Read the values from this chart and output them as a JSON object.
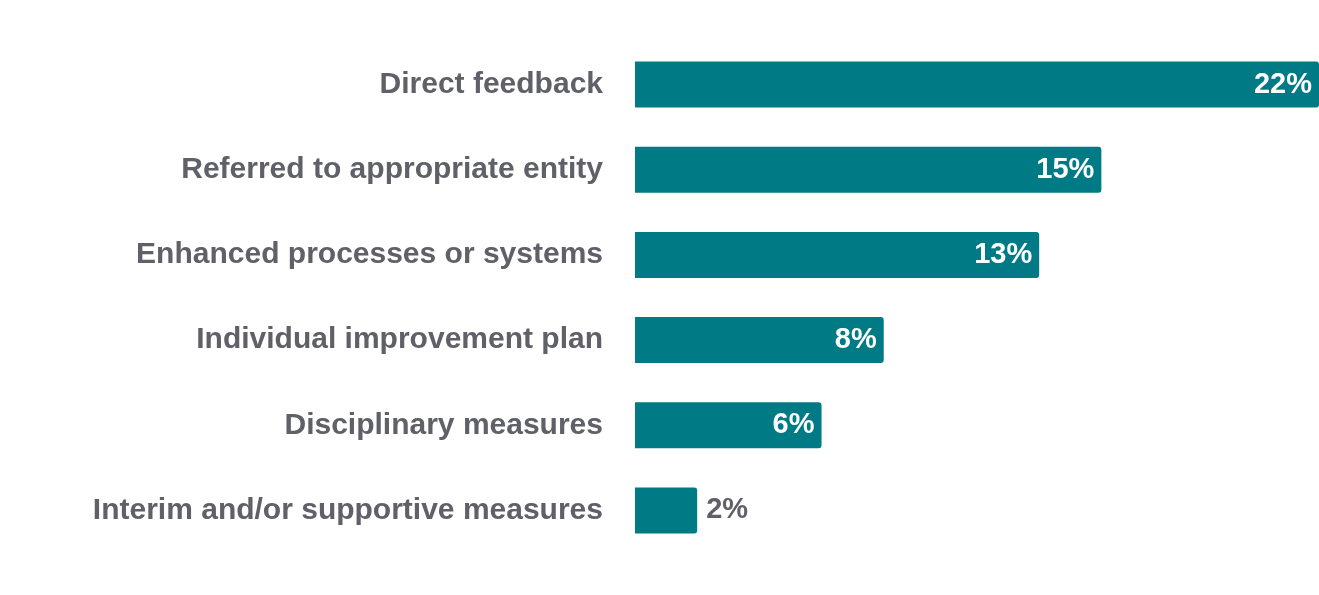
{
  "chart_data": {
    "type": "bar",
    "orientation": "horizontal",
    "categories": [
      "Direct feedback",
      "Referred to appropriate entity",
      "Enhanced processes or systems",
      "Individual improvement plan",
      "Disciplinary measures",
      "Interim and/or supportive measures"
    ],
    "values": [
      22,
      15,
      13,
      8,
      6,
      2
    ],
    "value_labels": [
      "22%",
      "15%",
      "13%",
      "8%",
      "6%",
      "2%"
    ],
    "color": "#007a84",
    "legend": false
  }
}
